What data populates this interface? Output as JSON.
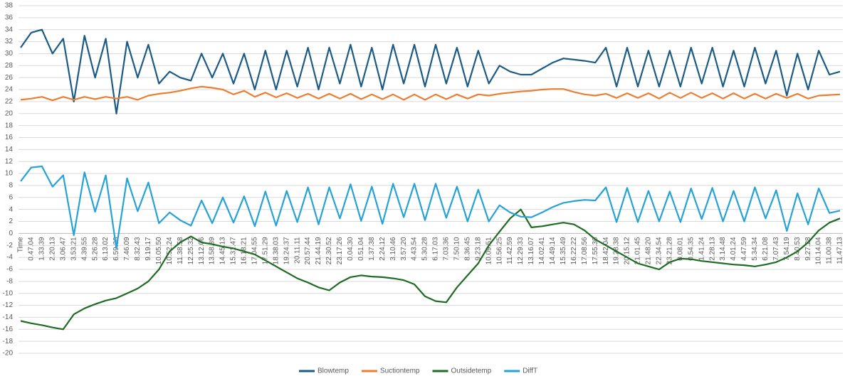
{
  "chart_data": {
    "type": "line",
    "categories": [
      "Time",
      "0.47.04",
      "1.33.39",
      "2.20.13",
      "3.06.47",
      "3.53.21",
      "4.39.55",
      "5.26.28",
      "6.13.02",
      "6.59.36",
      "7.46.09",
      "8.32.43",
      "9.19.17",
      "10.05.50",
      "10.52.24",
      "11.38.58",
      "12.25.32",
      "13.12.06",
      "13.58.39",
      "14.45.13",
      "15.31.47",
      "16.18.21",
      "17.04.55",
      "17.51.29",
      "18.38.03",
      "19.24.37",
      "20.11.11",
      "20.57.44",
      "21.44.19",
      "22.30.52",
      "23.17.26",
      "0.04.30",
      "0.51.04",
      "1.37.38",
      "2.24.12",
      "3.10.46",
      "3.57.20",
      "4.43.54",
      "5.30.28",
      "6.17.03",
      "7.03.36",
      "7.50.10",
      "8.36.45",
      "9.23.18",
      "10.09.51",
      "10.56.25",
      "11.42.59",
      "12.29.33",
      "13.16.07",
      "14.02.41",
      "14.49.14",
      "15.35.49",
      "16.22.22",
      "17.08.56",
      "17.55.30",
      "18.42.04",
      "19.28.38",
      "20.15.12",
      "21.01.45",
      "21.48.20",
      "22.34.54",
      "23.21.28",
      "0.08.01",
      "0.54.35",
      "1.41.24",
      "2.28.13",
      "3.14.48",
      "4.01.24",
      "4.47.59",
      "5.34.34",
      "6.21.08",
      "7.07.43",
      "7.54.19",
      "8.40.53",
      "9.27.28",
      "10.14.04",
      "11.00.38",
      "11.47.13"
    ],
    "series": [
      {
        "name": "Blowtemp",
        "color": "#1b5b84",
        "values": [
          31,
          33.5,
          34,
          30,
          32.5,
          22,
          33,
          26,
          32.5,
          20,
          32,
          26,
          31.5,
          25,
          27,
          26,
          25.5,
          30,
          26,
          30,
          25,
          30,
          24,
          30.5,
          24,
          30.5,
          24.5,
          31,
          24,
          31,
          25,
          31.5,
          24.5,
          31,
          24,
          31.5,
          25,
          31.5,
          24.5,
          31.5,
          25,
          31,
          24.5,
          30.5,
          25,
          28,
          27,
          26.5,
          26.5,
          27.5,
          28.5,
          29.2,
          29,
          28.8,
          28.5,
          31,
          24.5,
          31,
          24.5,
          30.5,
          24.5,
          30.5,
          24.5,
          31,
          25,
          31,
          24.5,
          30.5,
          24.5,
          31,
          25,
          30.5,
          23,
          30,
          24,
          30.5,
          26.5,
          27
        ]
      },
      {
        "name": "Suctiontemp",
        "color": "#ed7d31",
        "values": [
          22.3,
          22.5,
          22.8,
          22.2,
          22.8,
          22.3,
          22.8,
          22.4,
          22.8,
          22.5,
          22.8,
          22.3,
          23,
          23.3,
          23.5,
          23.8,
          24.2,
          24.5,
          24.3,
          24,
          23.2,
          23.8,
          22.8,
          23.5,
          22.7,
          23.4,
          22.6,
          23.3,
          22.5,
          23.3,
          22.5,
          23.3,
          22.4,
          23.2,
          22.4,
          23.2,
          22.3,
          23.2,
          22.3,
          23.2,
          22.4,
          23.2,
          22.5,
          23.2,
          23,
          23.3,
          23.5,
          23.7,
          23.8,
          24,
          24.1,
          24.1,
          23.6,
          23.2,
          23,
          23.3,
          22.6,
          23.4,
          22.6,
          23.4,
          22.5,
          23.5,
          22.6,
          23.5,
          22.6,
          23.4,
          22.5,
          23.4,
          22.5,
          23.3,
          22.5,
          23.3,
          22.6,
          23.3,
          22.5,
          23,
          23.1,
          23.2
        ]
      },
      {
        "name": "Outsidetemp",
        "color": "#1e6b22",
        "values": [
          -14.6,
          -15,
          -15.3,
          -15.7,
          -16,
          -13.5,
          -12.5,
          -11.8,
          -11.2,
          -10.8,
          -10,
          -9.2,
          -8,
          -6,
          -3,
          -1.5,
          -0.5,
          -1.5,
          -1.8,
          -2.2,
          -2.5,
          -3,
          -3.5,
          -4.5,
          -5.5,
          -6.5,
          -7.5,
          -8.2,
          -9,
          -9.5,
          -8.2,
          -7.3,
          -7,
          -7.2,
          -7.3,
          -7.5,
          -7.8,
          -8.5,
          -10.5,
          -11.3,
          -11.5,
          -9,
          -7,
          -5,
          -2,
          0.3,
          2.5,
          4,
          1,
          1.2,
          1.5,
          1.8,
          1.5,
          0.5,
          -1,
          -2,
          -3,
          -4,
          -5,
          -5.5,
          -6,
          -4.8,
          -4.2,
          -4.3,
          -4.6,
          -4.8,
          -5,
          -5.2,
          -5.3,
          -5.5,
          -5.2,
          -4.8,
          -4,
          -3,
          -1.5,
          0.5,
          1.8,
          2.5
        ]
      },
      {
        "name": "DiffT",
        "color": "#25a2d6",
        "values": [
          8.7,
          11,
          11.2,
          7.8,
          9.7,
          -0.3,
          10.2,
          3.6,
          9.7,
          -2.5,
          9.2,
          3.7,
          8.5,
          1.7,
          3.5,
          2.2,
          1.3,
          5.5,
          1.7,
          6,
          1.8,
          6.2,
          1.2,
          7,
          1.3,
          7.1,
          1.9,
          7.7,
          1.5,
          7.7,
          2.5,
          8.2,
          2.1,
          7.8,
          1.6,
          8.3,
          2.7,
          8.3,
          2.2,
          8.3,
          2.6,
          7.8,
          2,
          7.3,
          2,
          4.7,
          3.5,
          2.8,
          2.7,
          3.5,
          4.4,
          5.1,
          5.4,
          5.6,
          5.5,
          7.7,
          1.9,
          7.6,
          1.9,
          7.1,
          2,
          7,
          1.9,
          7.5,
          2.4,
          7.6,
          2,
          7.1,
          2,
          7.7,
          2.5,
          7.2,
          0.4,
          6.7,
          1.5,
          7.5,
          3.4,
          3.8
        ]
      }
    ],
    "ylim": [
      -20,
      38
    ],
    "yticks": [
      -20,
      -18,
      -16,
      -14,
      -12,
      -10,
      -8,
      -6,
      -4,
      -2,
      0,
      2,
      4,
      6,
      8,
      10,
      12,
      14,
      16,
      18,
      20,
      22,
      24,
      26,
      28,
      30,
      32,
      34,
      36,
      38
    ],
    "grid": true,
    "legend": "bottom"
  }
}
